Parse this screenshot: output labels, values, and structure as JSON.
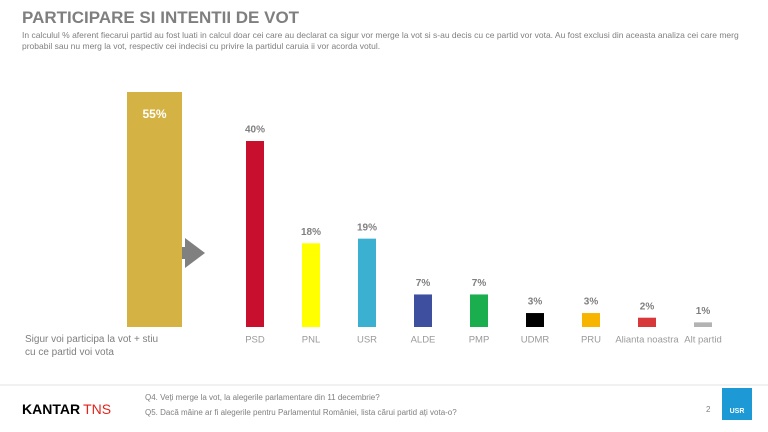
{
  "header": {
    "title": "PARTICIPARE SI INTENTII DE VOT",
    "subtitle": "In calculul % aferent fiecarui partid au fost luati in calcul doar cei care au declarat ca sigur vor merge la vot si s-au decis cu ce partid vor vota. Au fost exclusi din aceasta analiza cei care merg probabil sau nu merg la vot, respectiv cei indecisi cu privire la partidul caruia ii vor acorda votul."
  },
  "chart_data": [
    {
      "type": "bar",
      "categories": [
        "Sigur voi participa la vot + stiu cu ce partid voi vota"
      ],
      "values": [
        55
      ],
      "value_labels": [
        "55%"
      ],
      "color": "#d5b244"
    },
    {
      "type": "bar",
      "categories": [
        "PSD",
        "PNL",
        "USR",
        "ALDE",
        "PMP",
        "UDMR",
        "PRU",
        "Alianta noastra",
        "Alt partid"
      ],
      "values": [
        40,
        18,
        19,
        7,
        7,
        3,
        3,
        2,
        1
      ],
      "value_labels": [
        "40%",
        "18%",
        "19%",
        "7%",
        "7%",
        "3%",
        "3%",
        "2%",
        "1%"
      ],
      "colors": [
        "#c8102e",
        "#ffff00",
        "#3cb0d0",
        "#3f4fa0",
        "#1aae4e",
        "#000000",
        "#f7b500",
        "#d9383a",
        "#b3b3b3"
      ]
    }
  ],
  "footer": {
    "brand": "KANTAR",
    "brand2": "TNS",
    "q4": "Q4. Veți merge la vot, la alegerile parlamentare din 11 decembrie?",
    "q5": "Q5. Dacă mâine ar fi alegerile pentru Parlamentul României, lista cărui partid ați vota-o?",
    "page": "2",
    "logo": "USR"
  }
}
